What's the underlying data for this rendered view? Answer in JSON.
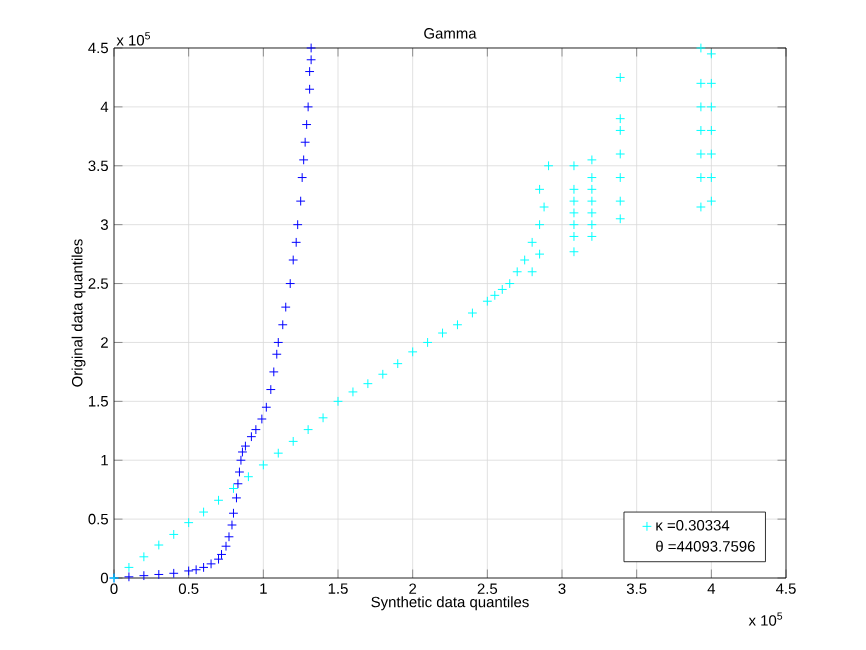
{
  "chart_data": {
    "type": "scatter",
    "title": "Gamma",
    "xlabel": "Synthetic data quantiles",
    "ylabel": "Original data quantiles",
    "annotations": [
      "x 10$^{5}$",
      "x 10$^{5}$",
      "θ =44093.7596"
    ],
    "xlim": [
      0,
      4.5
    ],
    "ylim": [
      0,
      4.5
    ],
    "xticks": [
      0,
      0.5,
      1,
      1.5,
      2,
      2.5,
      3,
      3.5,
      4,
      4.5
    ],
    "yticks": [
      0,
      0.5,
      1,
      1.5,
      2,
      2.5,
      3,
      3.5,
      4,
      4.5
    ],
    "grid": true,
    "legend": "bottom right",
    "marker": "cross",
    "series": [
      {
        "color": "#0000ff",
        "x": [
          0,
          0.1,
          0.2,
          0.3,
          0.4,
          0.5,
          0.55,
          0.6,
          0.65,
          0.7,
          0.72,
          0.75,
          0.77,
          0.79,
          0.8,
          0.82,
          0.83,
          0.84,
          0.85,
          0.86,
          0.88,
          0.92,
          0.95,
          0.99,
          1.02,
          1.05,
          1.07,
          1.09,
          1.1,
          1.13,
          1.15,
          1.18,
          1.2,
          1.22,
          1.23,
          1.25,
          1.26,
          1.27,
          1.28,
          1.29,
          1.3,
          1.31,
          1.31,
          1.32,
          1.32
        ],
        "values": [
          0,
          0.01,
          0.02,
          0.03,
          0.04,
          0.06,
          0.07,
          0.09,
          0.12,
          0.16,
          0.2,
          0.27,
          0.35,
          0.45,
          0.55,
          0.68,
          0.8,
          0.9,
          1.0,
          1.07,
          1.12,
          1.2,
          1.26,
          1.35,
          1.45,
          1.6,
          1.75,
          1.9,
          2.0,
          2.15,
          2.3,
          2.5,
          2.7,
          2.85,
          3.0,
          3.2,
          3.4,
          3.55,
          3.7,
          3.85,
          4.0,
          4.15,
          4.3,
          4.4,
          4.5
        ]
      },
      {
        "name": "κ =0.30334",
        "color": "#00ffff",
        "x": [
          0,
          0.1,
          0.2,
          0.3,
          0.4,
          0.5,
          0.6,
          0.7,
          0.8,
          0.9,
          1.0,
          1.1,
          1.2,
          1.3,
          1.4,
          1.5,
          1.6,
          1.7,
          1.8,
          1.9,
          2.0,
          2.1,
          2.2,
          2.3,
          2.4,
          2.5,
          2.55,
          2.6,
          2.65,
          2.7,
          2.75,
          2.8,
          2.8,
          2.85,
          2.85,
          2.88,
          2.85,
          2.91,
          3.08,
          3.08,
          3.08,
          3.08,
          3.08,
          3.08,
          3.08,
          3.2,
          3.2,
          3.2,
          3.2,
          3.2,
          3.2,
          3.2,
          3.39,
          3.39,
          3.39,
          3.39,
          3.39,
          3.39,
          3.39,
          3.93,
          3.93,
          3.93,
          3.93,
          3.93,
          3.93,
          3.93,
          4.0,
          4.0,
          4.0,
          4.0,
          4.0,
          4.0,
          4.0
        ],
        "values": [
          0,
          0.09,
          0.18,
          0.28,
          0.37,
          0.47,
          0.56,
          0.66,
          0.76,
          0.86,
          0.96,
          1.06,
          1.16,
          1.26,
          1.36,
          1.5,
          1.58,
          1.65,
          1.73,
          1.82,
          1.92,
          2.0,
          2.08,
          2.15,
          2.25,
          2.35,
          2.4,
          2.45,
          2.5,
          2.6,
          2.7,
          2.6,
          2.85,
          2.75,
          3.0,
          3.15,
          3.3,
          3.5,
          2.77,
          2.9,
          3.0,
          3.1,
          3.2,
          3.3,
          3.5,
          2.9,
          3.0,
          3.1,
          3.2,
          3.3,
          3.4,
          3.55,
          3.05,
          3.2,
          3.4,
          3.6,
          3.8,
          3.9,
          4.25,
          3.15,
          3.4,
          3.6,
          3.8,
          4.0,
          4.2,
          4.5,
          3.2,
          3.4,
          3.6,
          3.8,
          4.0,
          4.2,
          4.45
        ]
      }
    ]
  }
}
